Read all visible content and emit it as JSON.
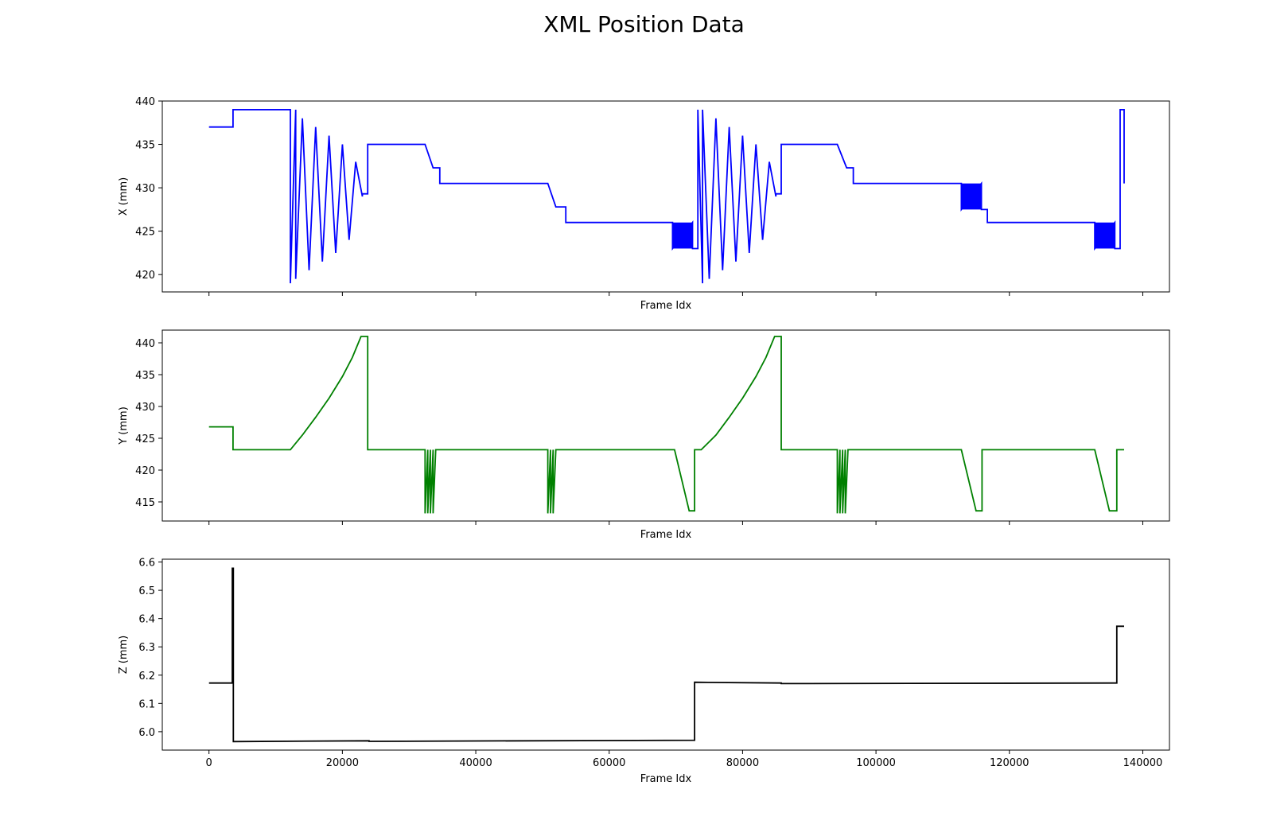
{
  "figure": {
    "title": "XML Position Data"
  },
  "chart_data": [
    {
      "type": "line",
      "title": "",
      "xlabel": "Frame Idx",
      "ylabel": "X (mm)",
      "xlim": [
        -7000,
        144000
      ],
      "ylim": [
        418,
        440
      ],
      "xticks": [
        0,
        20000,
        40000,
        60000,
        80000,
        100000,
        120000,
        140000
      ],
      "xticklabels_visible": false,
      "yticks": [
        420,
        425,
        430,
        435,
        440
      ],
      "yticklabels": [
        "420",
        "425",
        "430",
        "435",
        "440"
      ],
      "color": "#0000ff",
      "grid": false,
      "series": [
        {
          "x": [
            0,
            3600,
            3600,
            12200,
            12200,
            13000,
            13000,
            14000,
            15000,
            16000,
            17000,
            18000,
            19000,
            20000,
            21000,
            22000,
            23000,
            23000,
            23800,
            23800,
            32400,
            33600,
            34600,
            34600,
            50800,
            52000,
            53500,
            53500,
            69500,
            69500,
            72500,
            72500,
            73300,
            73300,
            74000,
            74000,
            75000,
            76000,
            77000,
            78000,
            79000,
            80000,
            81000,
            82000,
            83000,
            84000,
            85000,
            85000,
            85800,
            85800,
            94200,
            95600,
            96600,
            96600,
            112800,
            112800,
            115800,
            115800,
            116700,
            116700,
            132800,
            132800,
            135800,
            135800,
            136600,
            136600,
            137200,
            137200
          ],
          "y": [
            437,
            437,
            439,
            439,
            419,
            439,
            419.5,
            438,
            420.5,
            437,
            421.5,
            436,
            422.5,
            435,
            424,
            433,
            429,
            429.3,
            429.3,
            435,
            435,
            432.3,
            432.3,
            430.5,
            430.5,
            427.8,
            427.8,
            426,
            426,
            423,
            426,
            423,
            423,
            439,
            419,
            439,
            419.5,
            438,
            420.5,
            437,
            421.5,
            436,
            422.5,
            435,
            424,
            433,
            429,
            429.3,
            429.3,
            435,
            435,
            432.3,
            432.3,
            430.5,
            430.5,
            427.5,
            430.5,
            427.5,
            427.5,
            426,
            426,
            423,
            426,
            423,
            423,
            439,
            439,
            430.5
          ]
        }
      ],
      "bands": [
        {
          "x0": 69500,
          "x1": 72500,
          "y0": 423,
          "y1": 426
        },
        {
          "x0": 112800,
          "x1": 115800,
          "y0": 427.5,
          "y1": 430.5
        },
        {
          "x0": 132800,
          "x1": 135800,
          "y0": 423,
          "y1": 426
        }
      ]
    },
    {
      "type": "line",
      "title": "",
      "xlabel": "Frame Idx",
      "ylabel": "Y (mm)",
      "xlim": [
        -7000,
        144000
      ],
      "ylim": [
        412,
        442
      ],
      "xticks": [
        0,
        20000,
        40000,
        60000,
        80000,
        100000,
        120000,
        140000
      ],
      "xticklabels_visible": false,
      "yticks": [
        415,
        420,
        425,
        430,
        435,
        440
      ],
      "yticklabels": [
        "415",
        "420",
        "425",
        "430",
        "435",
        "440"
      ],
      "color": "#008000",
      "grid": false,
      "series": [
        {
          "x": [
            0,
            3600,
            3600,
            12200,
            14000,
            16000,
            18000,
            20000,
            21500,
            22800,
            23800,
            23800,
            32400,
            32400,
            32800,
            32800,
            33200,
            33200,
            33600,
            33600,
            34000,
            34000,
            50800,
            50800,
            51200,
            51200,
            51600,
            51600,
            52000,
            52000,
            69800,
            72000,
            72800,
            72800,
            73800,
            76000,
            78000,
            80000,
            82000,
            83500,
            84800,
            85800,
            85800,
            94200,
            94200,
            94600,
            94600,
            95000,
            95000,
            95400,
            95400,
            95800,
            95800,
            112800,
            115000,
            115900,
            115900,
            132800,
            135000,
            136100,
            136100,
            137200
          ],
          "y": [
            426.8,
            426.8,
            423.2,
            423.2,
            425.5,
            428.3,
            431.3,
            434.7,
            437.7,
            441,
            441,
            423.2,
            423.2,
            413.2,
            423.2,
            413.2,
            423.2,
            413.2,
            423.2,
            413.2,
            423.2,
            423.2,
            423.2,
            413.2,
            423.2,
            413.2,
            423.2,
            413.2,
            423.2,
            423.2,
            423.2,
            413.6,
            413.6,
            423.2,
            423.2,
            425.5,
            428.3,
            431.3,
            434.7,
            437.7,
            441,
            441,
            423.2,
            423.2,
            413.2,
            423.2,
            413.2,
            423.2,
            413.2,
            423.2,
            413.2,
            423.2,
            423.2,
            423.2,
            413.6,
            413.6,
            423.2,
            423.2,
            413.6,
            413.6,
            423.2,
            423.2
          ]
        }
      ],
      "bands": []
    },
    {
      "type": "line",
      "title": "",
      "xlabel": "Frame Idx",
      "ylabel": "Z (mm)",
      "xlim": [
        -7000,
        144000
      ],
      "ylim": [
        5.935,
        6.61
      ],
      "xticks": [
        0,
        20000,
        40000,
        60000,
        80000,
        100000,
        120000,
        140000
      ],
      "xticklabels_visible": true,
      "xticklabels": [
        "0",
        "20000",
        "40000",
        "60000",
        "80000",
        "100000",
        "120000",
        "140000"
      ],
      "yticks": [
        6.0,
        6.1,
        6.2,
        6.3,
        6.4,
        6.5,
        6.6
      ],
      "yticklabels": [
        "6.0",
        "6.1",
        "6.2",
        "6.3",
        "6.4",
        "6.5",
        "6.6"
      ],
      "color": "#000000",
      "grid": false,
      "series": [
        {
          "x": [
            0,
            3500,
            3500,
            3650,
            3650,
            24000,
            24000,
            72800,
            72800,
            85800,
            85800,
            136100,
            136100,
            137200
          ],
          "y": [
            6.172,
            6.172,
            6.578,
            6.578,
            5.965,
            5.968,
            5.966,
            5.97,
            6.175,
            6.172,
            6.17,
            6.172,
            6.373,
            6.373
          ]
        }
      ],
      "bands": []
    }
  ]
}
